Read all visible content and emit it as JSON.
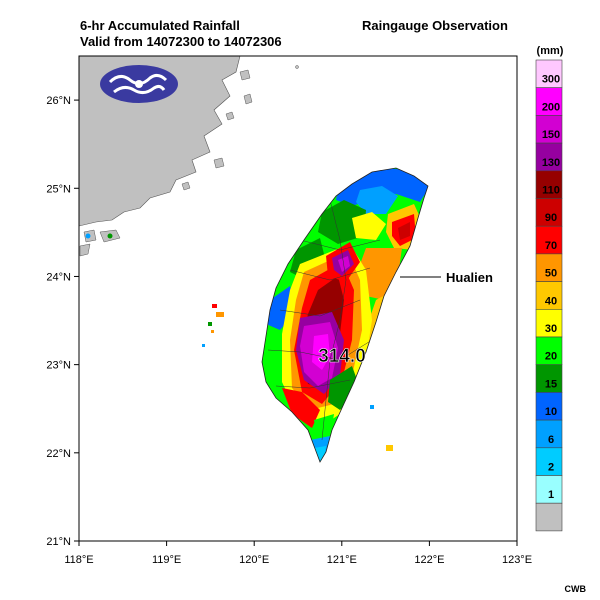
{
  "header": {
    "title_line1": "6-hr Accumulated Rainfall",
    "title_line2": "Valid from 14072300 to 14072306",
    "product": "Raingauge Observation"
  },
  "map": {
    "lon_range": [
      118,
      123
    ],
    "lat_range": [
      21,
      26.5
    ],
    "x_ticks": [
      "118°E",
      "119°E",
      "120°E",
      "121°E",
      "122°E",
      "123°E"
    ],
    "y_ticks": [
      "21°N",
      "22°N",
      "23°N",
      "24°N",
      "25°N",
      "26°N"
    ],
    "land_color": "#c0c0c0",
    "annotation_label": "Hualien",
    "max_value_label": "314.0"
  },
  "legend": {
    "unit": "(mm)",
    "levels": [
      {
        "label": "300",
        "color": "#ffc8ff"
      },
      {
        "label": "200",
        "color": "#ff00ff"
      },
      {
        "label": "150",
        "color": "#d200d2"
      },
      {
        "label": "130",
        "color": "#9600a0"
      },
      {
        "label": "110",
        "color": "#960000"
      },
      {
        "label": "90",
        "color": "#cd0000"
      },
      {
        "label": "70",
        "color": "#ff0000"
      },
      {
        "label": "50",
        "color": "#ff9600"
      },
      {
        "label": "40",
        "color": "#ffc800"
      },
      {
        "label": "30",
        "color": "#ffff00"
      },
      {
        "label": "20",
        "color": "#00ff00"
      },
      {
        "label": "15",
        "color": "#009600"
      },
      {
        "label": "10",
        "color": "#0064ff"
      },
      {
        "label": "6",
        "color": "#00a0ff"
      },
      {
        "label": "2",
        "color": "#00ccff"
      },
      {
        "label": "1",
        "color": "#99ffff"
      },
      {
        "label": "",
        "color": "#c0c0c0"
      }
    ]
  },
  "credit": "CWB"
}
